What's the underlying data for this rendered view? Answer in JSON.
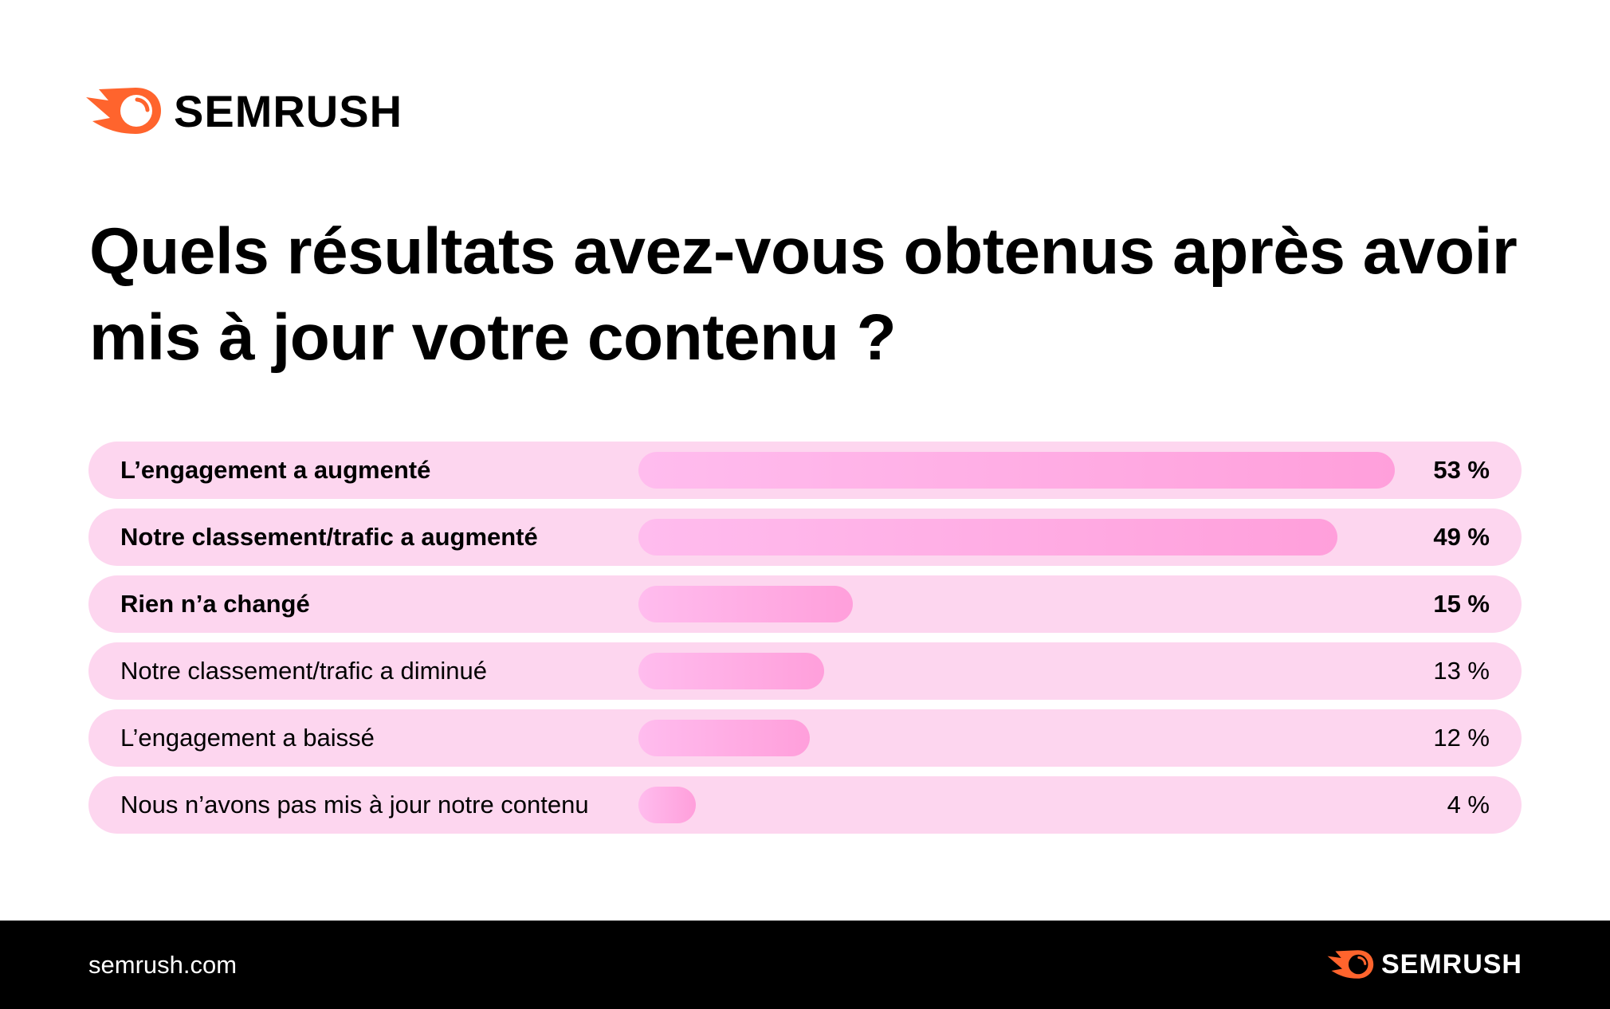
{
  "brand": {
    "logo_text": "SEMRUSH",
    "accent": "#ff642d"
  },
  "chart_data": {
    "type": "bar",
    "orientation": "horizontal",
    "title": "Quels résultats avez-vous obtenus après avoir mis à jour votre contenu ?",
    "categories": [
      "L’engagement a augmenté",
      "Notre classement/trafic a augmenté",
      "Rien n’a changé",
      "Notre classement/trafic a diminué",
      "L’engagement a baissé",
      "Nous n’avons pas mis à jour notre contenu"
    ],
    "values": [
      53,
      49,
      15,
      13,
      12,
      4
    ],
    "value_labels": [
      "53 %",
      "49 %",
      "15 %",
      "13 %",
      "12 %",
      "4 %"
    ],
    "bold_rows": [
      0,
      1,
      2
    ],
    "colors": {
      "row_bg": "#fdd6ef",
      "bar_start": "#ffbcee",
      "bar_end": "#ff9fdb"
    }
  },
  "footer": {
    "site": "semrush.com"
  }
}
